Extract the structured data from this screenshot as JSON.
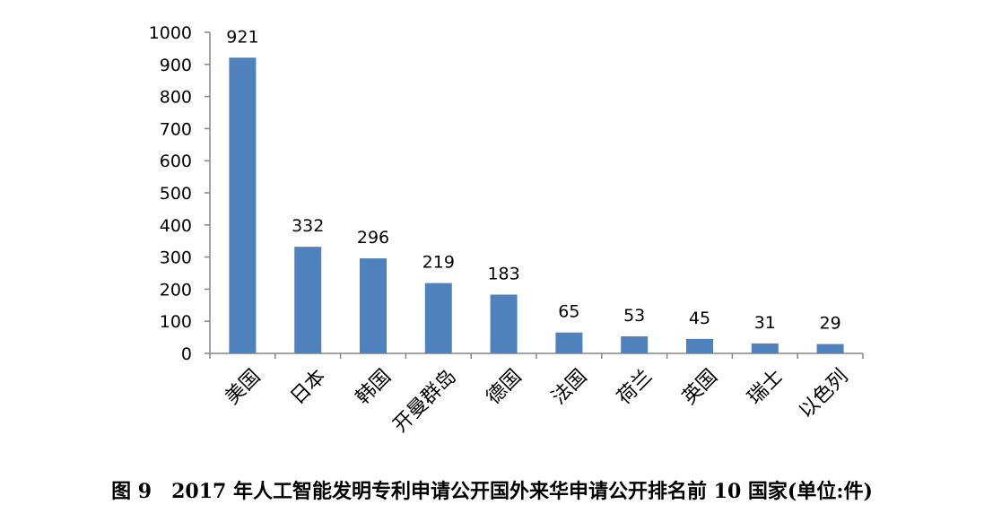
{
  "caption": "图 9　2017 年人工智能发明专利申请公开国外来华申请公开排名前 10 国家(单位:件)",
  "colors": {
    "bar": "#4F81BD",
    "axis": "#868686"
  },
  "chart_data": {
    "type": "bar",
    "categories": [
      "美国",
      "日本",
      "韩国",
      "开曼群岛",
      "德国",
      "法国",
      "荷兰",
      "英国",
      "瑞士",
      "以色列"
    ],
    "values": [
      921,
      332,
      296,
      219,
      183,
      65,
      53,
      45,
      31,
      29
    ],
    "data_labels": [
      "921",
      "332",
      "296",
      "219",
      "183",
      "65",
      "53",
      "45",
      "31",
      "29"
    ],
    "yticks": [
      0,
      100,
      200,
      300,
      400,
      500,
      600,
      700,
      800,
      900,
      1000
    ],
    "ylim": [
      0,
      1000
    ],
    "grid": false,
    "title": "",
    "xlabel": "",
    "ylabel": ""
  }
}
